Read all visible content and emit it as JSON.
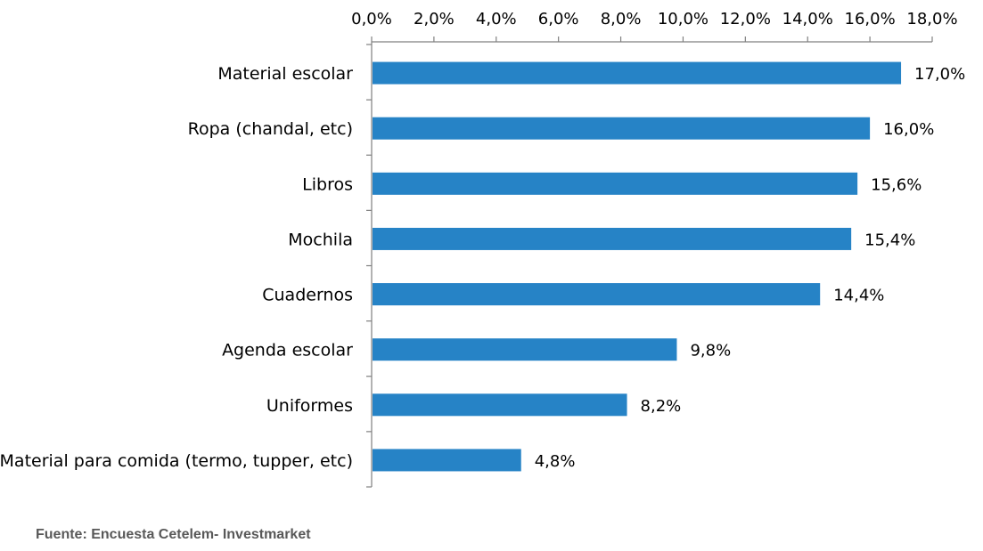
{
  "chart_data": {
    "type": "bar",
    "orientation": "horizontal",
    "categories": [
      "Material escolar",
      "Ropa (chandal, etc)",
      "Libros",
      "Mochila ",
      "Cuadernos ",
      "Agenda escolar",
      "Uniformes",
      "Material para comida (termo, tupper, etc)"
    ],
    "values": [
      17.0,
      16.0,
      15.6,
      15.4,
      14.4,
      9.8,
      8.2,
      4.8
    ],
    "value_labels": [
      "17,0%",
      "16,0%",
      "15,6%",
      "15,4%",
      "14,4%",
      "9,8%",
      "8,2%",
      "4,8%"
    ],
    "xlim": [
      0,
      18
    ],
    "x_ticks": [
      0,
      2,
      4,
      6,
      8,
      10,
      12,
      14,
      16,
      18
    ],
    "x_tick_labels": [
      "0,0%",
      "2,0%",
      "4,0%",
      "6,0%",
      "8,0%",
      "10,0%",
      "12,0%",
      "14,0%",
      "16,0%",
      "18,0%"
    ],
    "x_axis_position": "top",
    "grid": false,
    "bar_color": "#2683c6",
    "title": "",
    "xlabel": "",
    "ylabel": ""
  },
  "source": {
    "text": "Fuente: Encuesta Cetelem- Investmarket"
  }
}
